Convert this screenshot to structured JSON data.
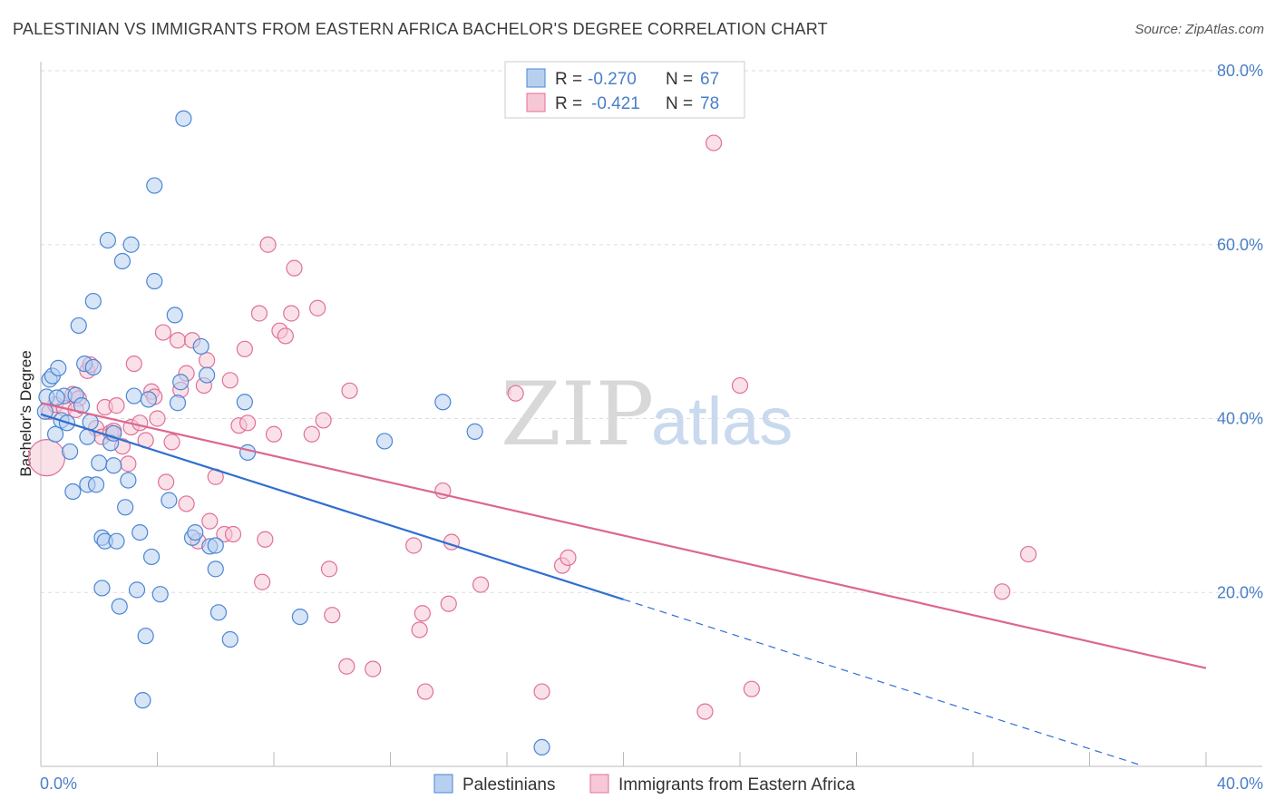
{
  "header": {
    "title": "PALESTINIAN VS IMMIGRANTS FROM EASTERN AFRICA BACHELOR'S DEGREE CORRELATION CHART",
    "source": "Source: ZipAtlas.com"
  },
  "watermark": {
    "zip": "ZIP",
    "atlas": "atlas"
  },
  "legend": {
    "rows": [
      {
        "r_label": "R =",
        "r_value": "-0.270",
        "n_label": "N =",
        "n_value": "67"
      },
      {
        "r_label": "R =",
        "r_value": "-0.421",
        "n_label": "N =",
        "n_value": "78"
      }
    ]
  },
  "chart_data": {
    "type": "scatter",
    "title": "PALESTINIAN VS IMMIGRANTS FROM EASTERN AFRICA BACHELOR'S DEGREE CORRELATION CHART",
    "xlabel": "",
    "ylabel": "Bachelor's Degree",
    "xlim": [
      0,
      40
    ],
    "ylim": [
      0,
      80
    ],
    "x_tick_labels": [
      "0.0%",
      "40.0%"
    ],
    "y_ticks": [
      20,
      40,
      60,
      80
    ],
    "y_tick_labels": [
      "20.0%",
      "40.0%",
      "60.0%",
      "80.0%"
    ],
    "grid": true,
    "legend_position": "top-center",
    "series": [
      {
        "name": "Palestinians",
        "color": "#4a86d4",
        "fill": "#b8d0f0",
        "r": -0.27,
        "n": 67,
        "trend": {
          "x_start": 0,
          "y_start": 40.5,
          "x_solid_end": 20,
          "y_solid_end": 19.2,
          "x_dash_end": 37.7,
          "y_dash_end": 0.2
        },
        "points": [
          [
            0.2,
            42.5
          ],
          [
            0.3,
            44.5
          ],
          [
            0.4,
            44.9
          ],
          [
            0.5,
            38.2
          ],
          [
            0.6,
            45.8
          ],
          [
            0.7,
            39.8
          ],
          [
            0.8,
            42.6
          ],
          [
            0.9,
            39.5
          ],
          [
            1.0,
            36.2
          ],
          [
            1.1,
            31.6
          ],
          [
            1.2,
            42.7
          ],
          [
            1.3,
            50.7
          ],
          [
            1.4,
            41.5
          ],
          [
            1.5,
            46.3
          ],
          [
            1.6,
            32.4
          ],
          [
            1.6,
            37.9
          ],
          [
            1.7,
            39.6
          ],
          [
            1.8,
            45.9
          ],
          [
            1.8,
            53.5
          ],
          [
            1.9,
            32.4
          ],
          [
            2.0,
            34.9
          ],
          [
            2.1,
            26.3
          ],
          [
            2.1,
            20.5
          ],
          [
            2.2,
            25.9
          ],
          [
            2.3,
            60.5
          ],
          [
            2.4,
            37.2
          ],
          [
            2.5,
            34.6
          ],
          [
            2.5,
            38.3
          ],
          [
            2.6,
            25.9
          ],
          [
            2.7,
            18.4
          ],
          [
            2.8,
            58.1
          ],
          [
            2.9,
            29.8
          ],
          [
            3.0,
            32.9
          ],
          [
            3.1,
            60.0
          ],
          [
            3.2,
            42.6
          ],
          [
            3.3,
            20.3
          ],
          [
            3.4,
            26.9
          ],
          [
            3.5,
            7.6
          ],
          [
            3.6,
            15.0
          ],
          [
            3.7,
            42.2
          ],
          [
            3.8,
            24.1
          ],
          [
            3.9,
            66.8
          ],
          [
            3.9,
            55.8
          ],
          [
            4.1,
            19.8
          ],
          [
            4.4,
            30.6
          ],
          [
            4.6,
            51.9
          ],
          [
            4.7,
            41.8
          ],
          [
            4.8,
            44.2
          ],
          [
            4.9,
            74.5
          ],
          [
            5.2,
            26.3
          ],
          [
            5.3,
            26.9
          ],
          [
            5.5,
            48.3
          ],
          [
            5.7,
            45.0
          ],
          [
            5.8,
            25.3
          ],
          [
            6.0,
            25.4
          ],
          [
            6.0,
            22.7
          ],
          [
            6.1,
            17.7
          ],
          [
            6.5,
            14.6
          ],
          [
            7.0,
            41.9
          ],
          [
            7.1,
            36.1
          ],
          [
            8.9,
            17.2
          ],
          [
            11.8,
            37.4
          ],
          [
            13.8,
            41.9
          ],
          [
            14.9,
            38.5
          ],
          [
            17.2,
            2.2
          ],
          [
            0.15,
            40.8
          ],
          [
            0.55,
            42.4
          ]
        ]
      },
      {
        "name": "Immigrants from Eastern Africa",
        "color": "#e07098",
        "fill": "#f6c8d6",
        "r": -0.421,
        "n": 78,
        "trend": {
          "x_start": 0,
          "y_start": 41.8,
          "x_end": 40,
          "y_end": 11.3
        },
        "points": [
          [
            0.2,
            35.5
          ],
          [
            0.3,
            40.8
          ],
          [
            0.5,
            41.6
          ],
          [
            0.8,
            41.2
          ],
          [
            1.1,
            42.8
          ],
          [
            1.3,
            42.3
          ],
          [
            1.6,
            45.5
          ],
          [
            1.7,
            46.2
          ],
          [
            1.9,
            38.9
          ],
          [
            2.1,
            37.9
          ],
          [
            2.2,
            41.3
          ],
          [
            2.4,
            38.4
          ],
          [
            2.6,
            41.5
          ],
          [
            2.8,
            36.8
          ],
          [
            3.0,
            34.8
          ],
          [
            3.1,
            39.0
          ],
          [
            3.2,
            46.3
          ],
          [
            3.4,
            39.5
          ],
          [
            3.6,
            37.5
          ],
          [
            3.8,
            43.1
          ],
          [
            3.9,
            42.5
          ],
          [
            4.0,
            40.0
          ],
          [
            4.2,
            49.9
          ],
          [
            4.3,
            32.7
          ],
          [
            4.5,
            37.3
          ],
          [
            4.7,
            49.0
          ],
          [
            4.8,
            43.3
          ],
          [
            5.0,
            30.2
          ],
          [
            5.0,
            45.2
          ],
          [
            5.2,
            49.0
          ],
          [
            5.4,
            25.9
          ],
          [
            5.6,
            43.8
          ],
          [
            5.7,
            46.7
          ],
          [
            5.8,
            28.2
          ],
          [
            6.0,
            33.3
          ],
          [
            6.3,
            26.7
          ],
          [
            6.5,
            44.4
          ],
          [
            6.6,
            26.7
          ],
          [
            6.8,
            39.2
          ],
          [
            7.0,
            48.0
          ],
          [
            7.1,
            39.5
          ],
          [
            7.5,
            52.1
          ],
          [
            7.6,
            21.2
          ],
          [
            7.7,
            26.1
          ],
          [
            7.8,
            60.0
          ],
          [
            8.0,
            38.2
          ],
          [
            8.2,
            50.1
          ],
          [
            8.4,
            49.5
          ],
          [
            8.6,
            52.1
          ],
          [
            8.7,
            57.3
          ],
          [
            9.3,
            38.2
          ],
          [
            9.5,
            52.7
          ],
          [
            9.7,
            39.8
          ],
          [
            9.9,
            22.7
          ],
          [
            10.0,
            17.4
          ],
          [
            10.5,
            11.5
          ],
          [
            10.6,
            43.2
          ],
          [
            11.4,
            11.2
          ],
          [
            12.8,
            25.4
          ],
          [
            13.0,
            15.7
          ],
          [
            13.1,
            17.6
          ],
          [
            13.2,
            8.6
          ],
          [
            13.8,
            31.7
          ],
          [
            14.0,
            18.7
          ],
          [
            14.1,
            25.8
          ],
          [
            15.1,
            20.9
          ],
          [
            16.3,
            42.9
          ],
          [
            17.2,
            8.6
          ],
          [
            17.9,
            23.1
          ],
          [
            18.1,
            24.0
          ],
          [
            22.8,
            6.3
          ],
          [
            23.1,
            71.7
          ],
          [
            24.0,
            43.8
          ],
          [
            24.4,
            8.9
          ],
          [
            33.0,
            20.1
          ],
          [
            33.9,
            24.4
          ],
          [
            1.2,
            41.0
          ],
          [
            2.5,
            38.6
          ]
        ]
      }
    ]
  },
  "bottom_legend": {
    "items": [
      {
        "label": "Palestinians"
      },
      {
        "label": "Immigrants from Eastern Africa"
      }
    ]
  }
}
